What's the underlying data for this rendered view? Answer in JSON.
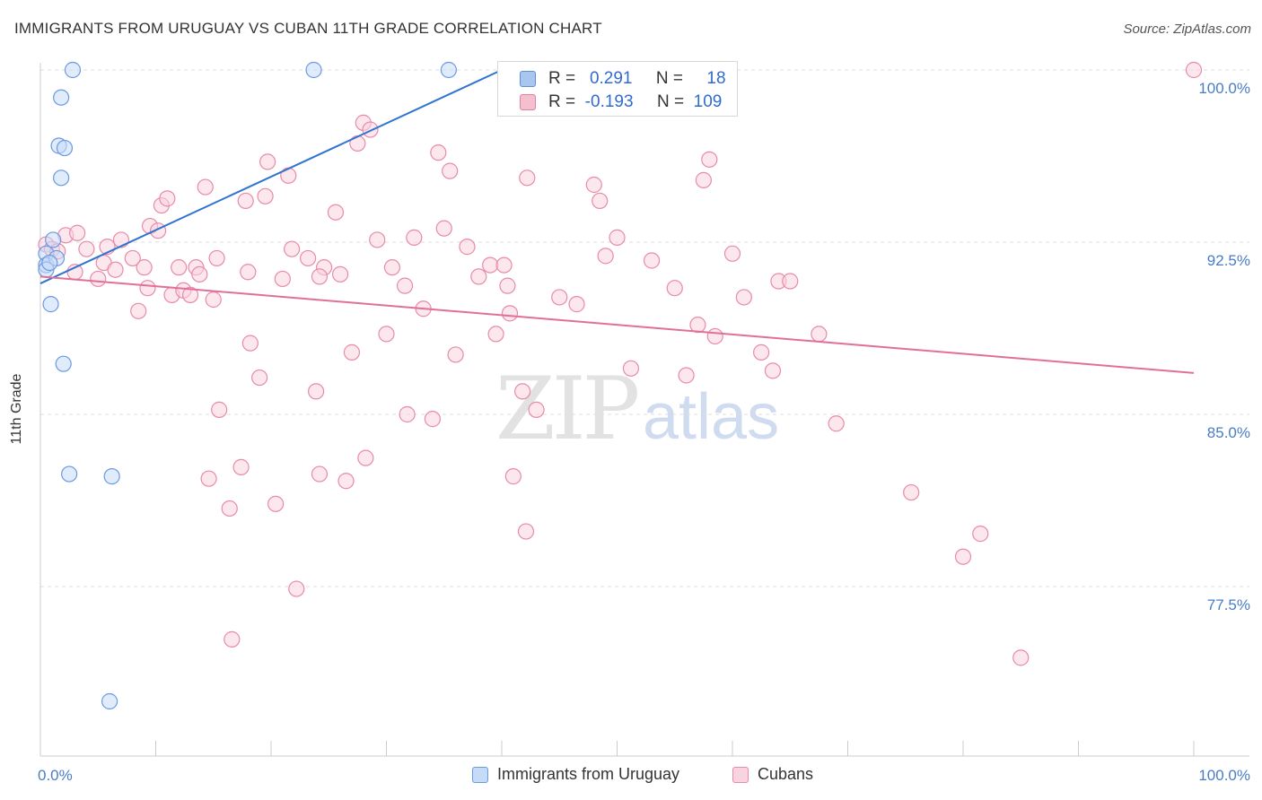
{
  "title": "IMMIGRANTS FROM URUGUAY VS CUBAN 11TH GRADE CORRELATION CHART",
  "source": "Source: ZipAtlas.com",
  "watermark": {
    "zip": "ZIP",
    "atlas": "atlas"
  },
  "legend": {
    "rows": [
      {
        "r_label": "R =",
        "r_value": "0.291",
        "n_label": "N =",
        "n_value": "18",
        "color": "#a8c6f0",
        "border": "#5b8fd8"
      },
      {
        "r_label": "R =",
        "r_value": "-0.193",
        "n_label": "N =",
        "n_value": "109",
        "color": "#f6bfd0",
        "border": "#e37fa1"
      }
    ]
  },
  "bottom_legend": [
    {
      "label": "Immigrants from Uruguay",
      "color": "#c6dbf7",
      "border": "#6a9ae0"
    },
    {
      "label": "Cubans",
      "color": "#f9d3df",
      "border": "#e88aab"
    }
  ],
  "chart_data": {
    "type": "scatter",
    "title": "IMMIGRANTS FROM URUGUAY VS CUBAN 11TH GRADE CORRELATION CHART",
    "xlabel": "",
    "ylabel": "11th Grade",
    "xlim": [
      0,
      100
    ],
    "ylim": [
      70.5,
      101.5
    ],
    "x_tick_labels": [
      "0.0%",
      "100.0%"
    ],
    "y_ticks": [
      77.5,
      85.0,
      92.5,
      100.0
    ],
    "y_tick_labels": [
      "77.5%",
      "85.0%",
      "92.5%",
      "100.0%"
    ],
    "grid": true,
    "series": [
      {
        "name": "Immigrants from Uruguay",
        "color": "#6a9ae0",
        "fill": "#c6dbf7",
        "trend_color": "#2f74d0",
        "trend": {
          "x0": 0.0,
          "y0": 90.7,
          "x1": 40.0,
          "y1": 100.0
        },
        "points": [
          [
            2.8,
            100.0
          ],
          [
            23.7,
            100.0
          ],
          [
            35.4,
            100.0
          ],
          [
            1.8,
            98.8
          ],
          [
            1.6,
            96.7
          ],
          [
            2.1,
            96.6
          ],
          [
            1.8,
            95.3
          ],
          [
            1.1,
            92.6
          ],
          [
            0.5,
            92.0
          ],
          [
            0.5,
            91.5
          ],
          [
            0.5,
            91.3
          ],
          [
            1.4,
            91.8
          ],
          [
            0.9,
            89.8
          ],
          [
            2.0,
            87.2
          ],
          [
            2.5,
            82.4
          ],
          [
            6.2,
            82.3
          ],
          [
            6.0,
            72.5
          ],
          [
            0.8,
            91.6
          ]
        ]
      },
      {
        "name": "Cubans",
        "color": "#e88aab",
        "fill": "#f9d3df",
        "trend_color": "#e0709a",
        "trend": {
          "x0": 0.0,
          "y0": 91.0,
          "x1": 100.0,
          "y1": 86.8
        },
        "points": [
          [
            100.0,
            100.0
          ],
          [
            0.5,
            92.4
          ],
          [
            1.0,
            92.2
          ],
          [
            1.5,
            92.1
          ],
          [
            2.2,
            92.8
          ],
          [
            3.2,
            92.9
          ],
          [
            4.0,
            92.2
          ],
          [
            5.0,
            90.9
          ],
          [
            5.5,
            91.6
          ],
          [
            6.5,
            91.3
          ],
          [
            7.0,
            92.6
          ],
          [
            8.0,
            91.8
          ],
          [
            8.5,
            89.5
          ],
          [
            9.0,
            91.4
          ],
          [
            9.5,
            93.2
          ],
          [
            10.2,
            93.0
          ],
          [
            10.5,
            94.1
          ],
          [
            11.0,
            94.4
          ],
          [
            11.4,
            90.2
          ],
          [
            12.0,
            91.4
          ],
          [
            12.4,
            90.4
          ],
          [
            13.0,
            90.2
          ],
          [
            13.5,
            91.4
          ],
          [
            13.8,
            91.1
          ],
          [
            14.3,
            94.9
          ],
          [
            15.0,
            90.0
          ],
          [
            15.3,
            91.8
          ],
          [
            15.5,
            85.2
          ],
          [
            14.6,
            82.2
          ],
          [
            16.4,
            80.9
          ],
          [
            16.6,
            75.2
          ],
          [
            17.4,
            82.7
          ],
          [
            17.8,
            94.3
          ],
          [
            18.2,
            88.1
          ],
          [
            19.0,
            86.6
          ],
          [
            19.5,
            94.5
          ],
          [
            19.7,
            96.0
          ],
          [
            20.4,
            81.1
          ],
          [
            21.0,
            90.9
          ],
          [
            21.5,
            95.4
          ],
          [
            21.8,
            92.2
          ],
          [
            22.2,
            77.4
          ],
          [
            23.2,
            91.8
          ],
          [
            23.9,
            86.0
          ],
          [
            24.2,
            82.4
          ],
          [
            24.6,
            91.4
          ],
          [
            25.6,
            93.8
          ],
          [
            26.0,
            91.1
          ],
          [
            26.5,
            82.1
          ],
          [
            27.0,
            87.7
          ],
          [
            27.5,
            96.8
          ],
          [
            28.0,
            97.7
          ],
          [
            28.2,
            83.1
          ],
          [
            28.6,
            97.4
          ],
          [
            29.2,
            92.6
          ],
          [
            30.0,
            88.5
          ],
          [
            30.5,
            91.4
          ],
          [
            31.6,
            90.6
          ],
          [
            31.8,
            85.0
          ],
          [
            32.4,
            92.7
          ],
          [
            33.2,
            89.6
          ],
          [
            34.0,
            84.8
          ],
          [
            34.5,
            96.4
          ],
          [
            35.0,
            93.1
          ],
          [
            35.5,
            95.6
          ],
          [
            36.0,
            87.6
          ],
          [
            37.0,
            92.3
          ],
          [
            38.0,
            91.0
          ],
          [
            39.0,
            91.5
          ],
          [
            39.5,
            88.5
          ],
          [
            40.2,
            91.5
          ],
          [
            40.5,
            90.6
          ],
          [
            40.7,
            89.4
          ],
          [
            41.0,
            82.3
          ],
          [
            41.8,
            86.0
          ],
          [
            42.1,
            79.9
          ],
          [
            42.2,
            95.3
          ],
          [
            43.0,
            85.2
          ],
          [
            45.0,
            90.1
          ],
          [
            46.5,
            89.8
          ],
          [
            48.0,
            95.0
          ],
          [
            48.5,
            94.3
          ],
          [
            49.0,
            91.9
          ],
          [
            50.0,
            92.7
          ],
          [
            51.2,
            87.0
          ],
          [
            53.0,
            91.7
          ],
          [
            55.0,
            90.5
          ],
          [
            56.0,
            86.7
          ],
          [
            57.0,
            88.9
          ],
          [
            57.5,
            95.2
          ],
          [
            58.0,
            96.1
          ],
          [
            58.5,
            88.4
          ],
          [
            60.0,
            92.0
          ],
          [
            61.0,
            90.1
          ],
          [
            62.5,
            87.7
          ],
          [
            63.5,
            86.9
          ],
          [
            64.0,
            90.8
          ],
          [
            65.0,
            90.8
          ],
          [
            67.5,
            88.5
          ],
          [
            69.0,
            84.6
          ],
          [
            75.5,
            81.6
          ],
          [
            80.0,
            78.8
          ],
          [
            81.5,
            79.8
          ],
          [
            85.0,
            74.4
          ],
          [
            24.2,
            91.0
          ],
          [
            18.0,
            91.2
          ],
          [
            9.3,
            90.5
          ],
          [
            5.8,
            92.3
          ],
          [
            3.0,
            91.2
          ]
        ]
      }
    ]
  }
}
